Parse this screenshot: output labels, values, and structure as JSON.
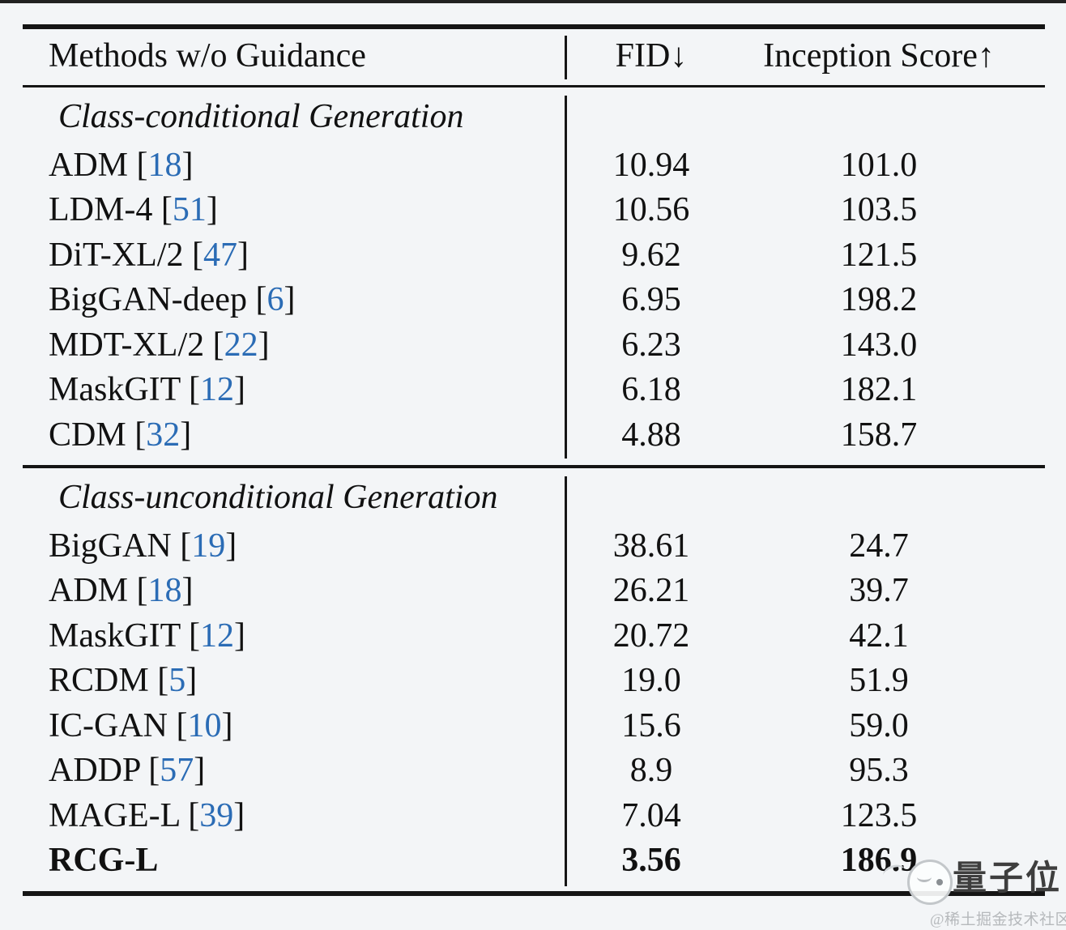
{
  "page": {
    "background_color": "#f3f5f7",
    "text_color": "#111111",
    "rule_color": "#151515",
    "citation_color": "#2b6cb5"
  },
  "table": {
    "columns": [
      {
        "label": "Methods w/o Guidance"
      },
      {
        "label": "FID↓"
      },
      {
        "label": "Inception Score↑"
      }
    ],
    "sections": [
      {
        "title": "Class-conditional Generation",
        "rows": [
          {
            "method": "ADM",
            "cite": "18",
            "fid": "10.94",
            "is": "101.0",
            "bold": false
          },
          {
            "method": "LDM-4",
            "cite": "51",
            "fid": "10.56",
            "is": "103.5",
            "bold": false
          },
          {
            "method": "DiT-XL/2",
            "cite": "47",
            "fid": "9.62",
            "is": "121.5",
            "bold": false
          },
          {
            "method": "BigGAN-deep",
            "cite": "6",
            "fid": "6.95",
            "is": "198.2",
            "bold": false
          },
          {
            "method": "MDT-XL/2",
            "cite": "22",
            "fid": "6.23",
            "is": "143.0",
            "bold": false
          },
          {
            "method": "MaskGIT",
            "cite": "12",
            "fid": "6.18",
            "is": "182.1",
            "bold": false
          },
          {
            "method": "CDM",
            "cite": "32",
            "fid": "4.88",
            "is": "158.7",
            "bold": false
          }
        ]
      },
      {
        "title": "Class-unconditional Generation",
        "rows": [
          {
            "method": "BigGAN",
            "cite": "19",
            "fid": "38.61",
            "is": "24.7",
            "bold": false
          },
          {
            "method": "ADM",
            "cite": "18",
            "fid": "26.21",
            "is": "39.7",
            "bold": false
          },
          {
            "method": "MaskGIT",
            "cite": "12",
            "fid": "20.72",
            "is": "42.1",
            "bold": false
          },
          {
            "method": "RCDM",
            "cite": "5",
            "fid": "19.0",
            "is": "51.9",
            "bold": false
          },
          {
            "method": "IC-GAN",
            "cite": "10",
            "fid": "15.6",
            "is": "59.0",
            "bold": false
          },
          {
            "method": "ADDP",
            "cite": "57",
            "fid": "8.9",
            "is": "95.3",
            "bold": false
          },
          {
            "method": "MAGE-L",
            "cite": "39",
            "fid": "7.04",
            "is": "123.5",
            "bold": false
          },
          {
            "method": "RCG-L",
            "cite": null,
            "fid": "3.56",
            "is": "186.9",
            "bold": true
          }
        ]
      }
    ]
  },
  "chart_data": {
    "type": "table",
    "title": "Methods w/o Guidance",
    "columns": [
      "Method",
      "FID (lower is better)",
      "Inception Score (higher is better)"
    ],
    "groups": [
      {
        "name": "Class-conditional Generation",
        "rows": [
          [
            "ADM [18]",
            10.94,
            101.0
          ],
          [
            "LDM-4 [51]",
            10.56,
            103.5
          ],
          [
            "DiT-XL/2 [47]",
            9.62,
            121.5
          ],
          [
            "BigGAN-deep [6]",
            6.95,
            198.2
          ],
          [
            "MDT-XL/2 [22]",
            6.23,
            143.0
          ],
          [
            "MaskGIT [12]",
            6.18,
            182.1
          ],
          [
            "CDM [32]",
            4.88,
            158.7
          ]
        ]
      },
      {
        "name": "Class-unconditional Generation",
        "rows": [
          [
            "BigGAN [19]",
            38.61,
            24.7
          ],
          [
            "ADM [18]",
            26.21,
            39.7
          ],
          [
            "MaskGIT [12]",
            20.72,
            42.1
          ],
          [
            "RCDM [5]",
            19.0,
            51.9
          ],
          [
            "IC-GAN [10]",
            15.6,
            59.0
          ],
          [
            "ADDP [57]",
            8.9,
            95.3
          ],
          [
            "MAGE-L [39]",
            7.04,
            123.5
          ],
          [
            "RCG-L (bold best)",
            3.56,
            186.9
          ]
        ]
      }
    ]
  },
  "watermark": {
    "brand": "量子位",
    "community": "@稀土掘金技术社区"
  }
}
